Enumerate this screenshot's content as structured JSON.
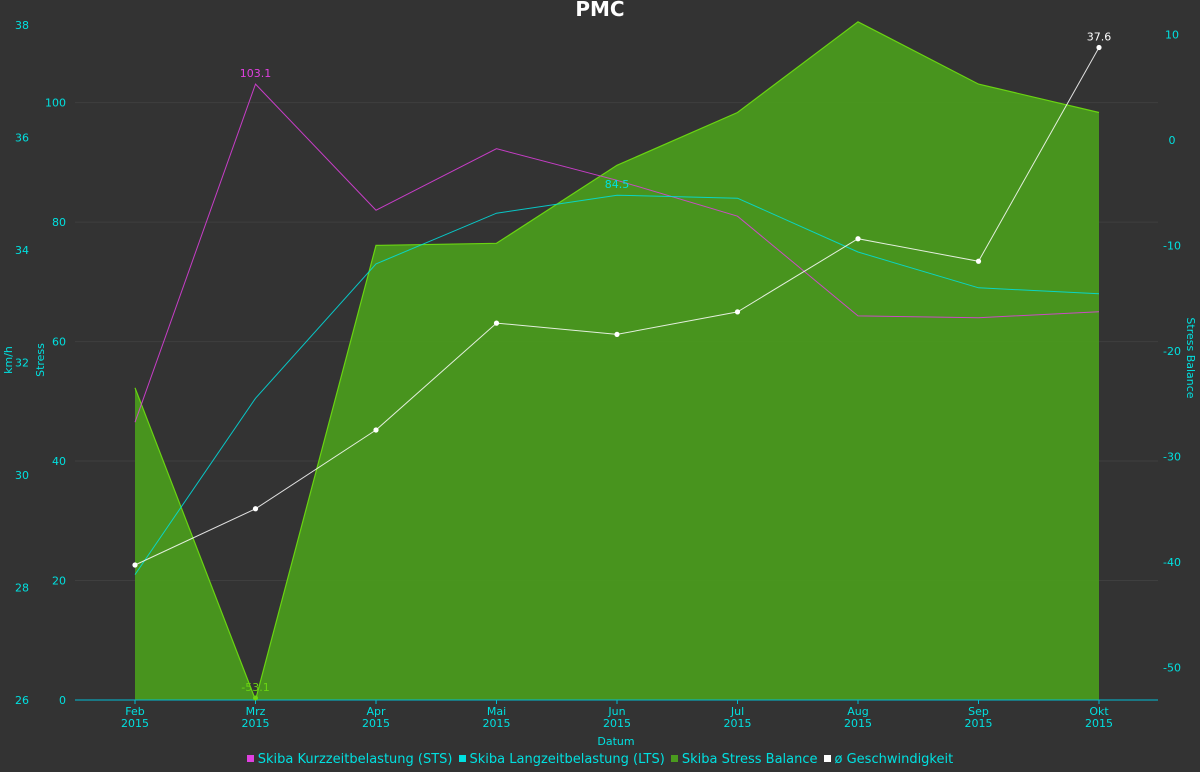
{
  "chart_data": {
    "type": "line",
    "title": "PMC",
    "xlabel": "Datum",
    "categories": [
      [
        "Feb",
        "2015"
      ],
      [
        "Mrz",
        "2015"
      ],
      [
        "Apr",
        "2015"
      ],
      [
        "Mai",
        "2015"
      ],
      [
        "Jun",
        "2015"
      ],
      [
        "Jul",
        "2015"
      ],
      [
        "Aug",
        "2015"
      ],
      [
        "Sep",
        "2015"
      ],
      [
        "Okt",
        "2015"
      ]
    ],
    "axes": {
      "speed": {
        "label": "km/h",
        "range": [
          26,
          38
        ],
        "ticks": [
          "26",
          "28",
          "30",
          "32",
          "34",
          "36",
          "38"
        ]
      },
      "stress": {
        "label": "Stress",
        "range": [
          0,
          113
        ],
        "ticks": [
          "0",
          "20",
          "40",
          "60",
          "80",
          "100"
        ]
      },
      "balance": {
        "label": "Stress Balance",
        "range": [
          -53.1,
          10.9
        ],
        "ticks": [
          "-50",
          "-40",
          "-30",
          "-20",
          "-10",
          "0",
          "10"
        ]
      }
    },
    "series": [
      {
        "name": "Skiba Stress Balance",
        "axis": "balance",
        "kind": "area",
        "color": "#6ad412",
        "fill": "#4a9a1e",
        "values": [
          -23.5,
          -53.1,
          -10.0,
          -9.8,
          -2.4,
          2.6,
          11.2,
          5.3,
          2.6
        ],
        "labels": [
          {
            "index": 1,
            "text": "-53.1"
          }
        ]
      },
      {
        "name": "Skiba Kurzzeitbelastung (STS)",
        "axis": "stress",
        "kind": "line",
        "color": "#e040e0",
        "values": [
          46.5,
          103.1,
          82.0,
          92.3,
          87.0,
          81.0,
          64.3,
          64.0,
          65.0
        ],
        "labels": [
          {
            "index": 1,
            "text": "103.1"
          }
        ]
      },
      {
        "name": "Skiba Langzeitbelastung (LTS)",
        "axis": "stress",
        "kind": "line",
        "color": "#00e0e0",
        "values": [
          21.0,
          50.5,
          73.0,
          81.5,
          84.5,
          84.0,
          75.0,
          69.0,
          68.0
        ],
        "labels": [
          {
            "index": 4,
            "text": "84.5"
          }
        ]
      },
      {
        "name": "ø Geschwindigkeit",
        "axis": "speed",
        "kind": "line",
        "color": "#ffffff",
        "values": [
          28.4,
          29.4,
          30.8,
          32.7,
          32.5,
          32.9,
          34.2,
          33.8,
          37.6
        ],
        "labels": [
          {
            "index": 8,
            "text": "37.6"
          }
        ]
      }
    ],
    "legend_order": [
      1,
      2,
      0,
      3
    ]
  }
}
